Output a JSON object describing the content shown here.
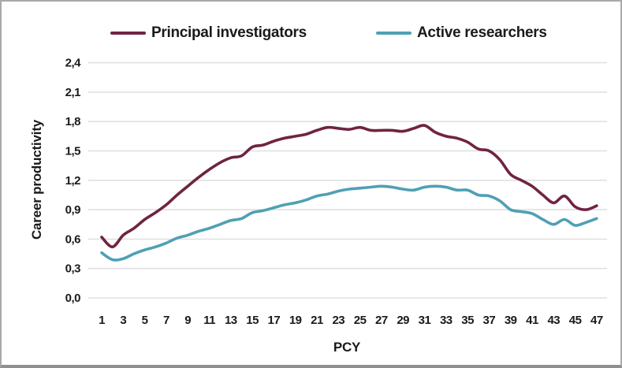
{
  "frame": {
    "background": "#ffffff",
    "border_color": "#a9a9a9"
  },
  "legend": {
    "position": "top",
    "items": [
      {
        "label": "Principal investigators",
        "color": "#702342"
      },
      {
        "label": "Active researchers",
        "color": "#4fa0b4"
      }
    ]
  },
  "chart_data": {
    "type": "line",
    "title": "",
    "xlabel": "PCY",
    "ylabel": "Career productivity",
    "ylim": [
      0,
      2.4
    ],
    "ytick_step": 0.3,
    "decimal_separator": ",",
    "grid": "horizontal",
    "gridline_color": "#e0e0e0",
    "legend_position": "top",
    "ytick_labels": [
      "0,0",
      "0,3",
      "0,6",
      "0,9",
      "1,2",
      "1,5",
      "1,8",
      "2,1",
      "2,4"
    ],
    "xtick_labels": [
      "1",
      "3",
      "5",
      "7",
      "9",
      "11",
      "13",
      "15",
      "17",
      "19",
      "21",
      "23",
      "25",
      "27",
      "29",
      "31",
      "33",
      "35",
      "37",
      "39",
      "41",
      "43",
      "45",
      "47"
    ],
    "x": [
      1,
      2,
      3,
      4,
      5,
      6,
      7,
      8,
      9,
      10,
      11,
      12,
      13,
      14,
      15,
      16,
      17,
      18,
      19,
      20,
      21,
      22,
      23,
      24,
      25,
      26,
      27,
      28,
      29,
      30,
      31,
      32,
      33,
      34,
      35,
      36,
      37,
      38,
      39,
      40,
      41,
      42,
      43,
      44,
      45,
      46,
      47
    ],
    "series": [
      {
        "name": "Principal investigators",
        "color": "#702342",
        "values": [
          0.62,
          0.52,
          0.64,
          0.71,
          0.8,
          0.87,
          0.95,
          1.05,
          1.14,
          1.23,
          1.31,
          1.38,
          1.43,
          1.45,
          1.54,
          1.56,
          1.6,
          1.63,
          1.65,
          1.67,
          1.71,
          1.74,
          1.73,
          1.72,
          1.74,
          1.71,
          1.71,
          1.71,
          1.7,
          1.73,
          1.76,
          1.69,
          1.65,
          1.63,
          1.59,
          1.52,
          1.5,
          1.41,
          1.26,
          1.2,
          1.14,
          1.05,
          0.97,
          1.04,
          0.93,
          0.9,
          0.94
        ]
      },
      {
        "name": "Active researchers",
        "color": "#4fa0b4",
        "values": [
          0.46,
          0.39,
          0.4,
          0.45,
          0.49,
          0.52,
          0.56,
          0.61,
          0.64,
          0.68,
          0.71,
          0.75,
          0.79,
          0.81,
          0.87,
          0.89,
          0.92,
          0.95,
          0.97,
          1.0,
          1.04,
          1.06,
          1.09,
          1.11,
          1.12,
          1.13,
          1.14,
          1.13,
          1.11,
          1.1,
          1.13,
          1.14,
          1.13,
          1.1,
          1.1,
          1.05,
          1.04,
          0.99,
          0.9,
          0.88,
          0.86,
          0.8,
          0.75,
          0.8,
          0.74,
          0.77,
          0.81
        ]
      }
    ]
  }
}
